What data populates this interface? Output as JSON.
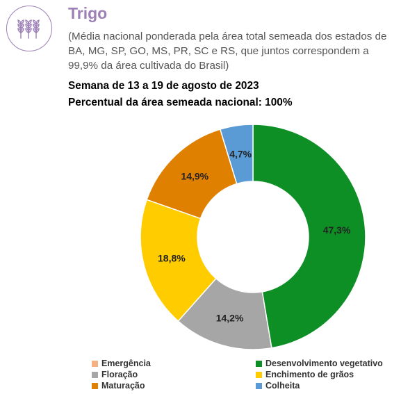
{
  "header": {
    "title": "Trigo",
    "subtitle": "(Média nacional ponderada pela área total semeada dos estados de BA, MG, SP, GO, MS, PR, SC e RS, que juntos correspondem a 99,9% da área cultivada do Brasil)",
    "week": "Semana de 13 a 19 de agosto de 2023",
    "percent_area": "Percentual da área semeada nacional: 100%",
    "icon": "wheat-icon",
    "accent_color": "#9b7fb6"
  },
  "chart_data": {
    "type": "pie",
    "donut": true,
    "start": "top",
    "direction": "clockwise",
    "slices": [
      {
        "name": "Emergência",
        "value": 0.0,
        "label": "",
        "color": "#f4b183"
      },
      {
        "name": "Desenvolvimento vegetativo",
        "value": 47.3,
        "label": "47,3%",
        "color": "#0e8f26"
      },
      {
        "name": "Floração",
        "value": 14.2,
        "label": "14,2%",
        "color": "#a6a6a6"
      },
      {
        "name": "Enchimento de grãos",
        "value": 18.8,
        "label": "18,8%",
        "color": "#ffcc00"
      },
      {
        "name": "Maturação",
        "value": 14.9,
        "label": "14,9%",
        "color": "#e08000"
      },
      {
        "name": "Colheita",
        "value": 4.7,
        "label": "4,7%",
        "color": "#5b9bd5"
      }
    ],
    "legend": {
      "placement": "bottom",
      "order": [
        "Emergência",
        "Desenvolvimento vegetativo",
        "Floração",
        "Enchimento de grãos",
        "Maturação",
        "Colheita"
      ]
    }
  }
}
